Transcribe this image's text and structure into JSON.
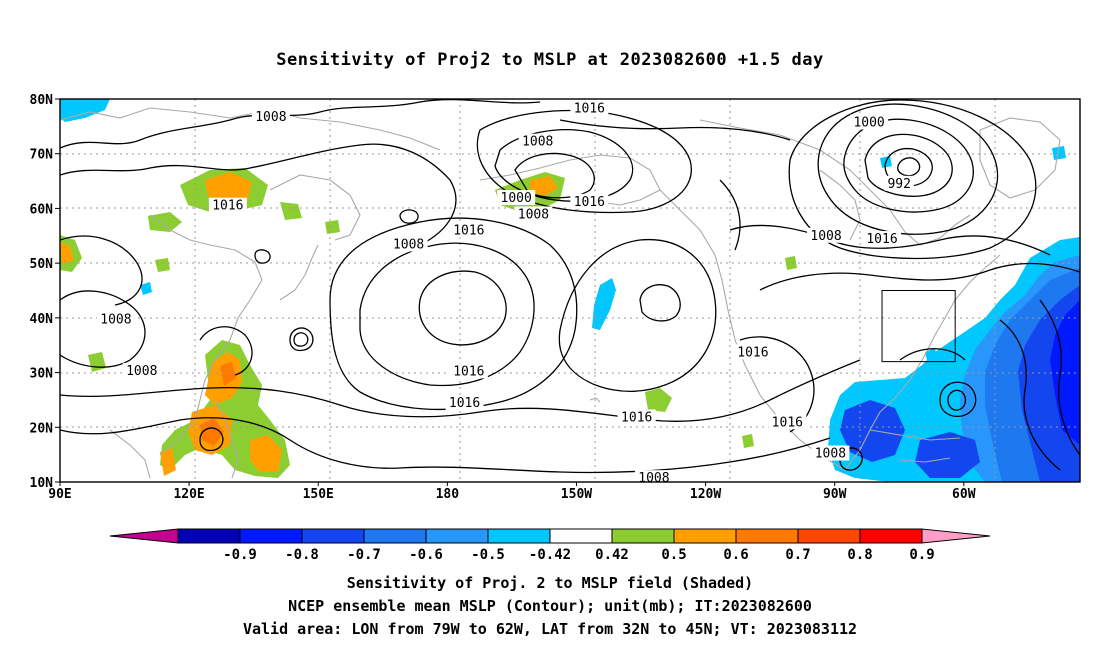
{
  "title": "Sensitivity of Proj2 to MSLP at 2023082600 +1.5 day",
  "map": {
    "lat_labels": [
      "80N",
      "70N",
      "60N",
      "50N",
      "40N",
      "30N",
      "20N",
      "10N"
    ],
    "lon_labels": [
      "90E",
      "120E",
      "150E",
      "180",
      "150W",
      "120W",
      "90W",
      "60W"
    ],
    "contour_labels": [
      {
        "text": "1008",
        "lon": 139,
        "lat": 76.7
      },
      {
        "text": "1016",
        "lon": 213,
        "lat": 78.3
      },
      {
        "text": "1008",
        "lon": 201,
        "lat": 72.2
      },
      {
        "text": "1000",
        "lon": 196,
        "lat": 61.9
      },
      {
        "text": "1008",
        "lon": 200,
        "lat": 58.9
      },
      {
        "text": "1016",
        "lon": 213,
        "lat": 61.2
      },
      {
        "text": "1016",
        "lon": 129,
        "lat": 60.5
      },
      {
        "text": "1016",
        "lon": 185,
        "lat": 56.0
      },
      {
        "text": "1008",
        "lon": 171,
        "lat": 53.4
      },
      {
        "text": "1008",
        "lon": 103,
        "lat": 39.7
      },
      {
        "text": "1008",
        "lon": 109,
        "lat": 30.3
      },
      {
        "text": "1016",
        "lon": 185,
        "lat": 30.2
      },
      {
        "text": "1016",
        "lon": 184,
        "lat": 24.4
      },
      {
        "text": "1016",
        "lon": 224,
        "lat": 21.8
      },
      {
        "text": "1016",
        "lon": 251,
        "lat": 33.7
      },
      {
        "text": "1016",
        "lon": 259,
        "lat": 20.9
      },
      {
        "text": "1008",
        "lon": 269,
        "lat": 15.2
      },
      {
        "text": "1008",
        "lon": 228,
        "lat": 10.7
      },
      {
        "text": "1000",
        "lon": 278,
        "lat": 75.7
      },
      {
        "text": "992",
        "lon": 285,
        "lat": 64.5
      },
      {
        "text": "1008",
        "lon": 268,
        "lat": 55.0
      },
      {
        "text": "1016",
        "lon": 281,
        "lat": 54.4
      }
    ],
    "valid_box": {
      "lon_min": 281,
      "lon_max": 298,
      "lat_min": 32,
      "lat_max": 45
    }
  },
  "colorbar": {
    "colors": [
      "#c3008f",
      "#0000b4",
      "#0019ff",
      "#1446f0",
      "#1e78f0",
      "#2896fa",
      "#00c8ff",
      "#ffffff",
      "#8ccd32",
      "#ffa000",
      "#ff7800",
      "#ff4600",
      "#ff0000",
      "#ff9ec8"
    ],
    "labels": [
      "-0.9",
      "-0.8",
      "-0.7",
      "-0.6",
      "-0.5",
      "-0.42",
      "0.42",
      "0.5",
      "0.6",
      "0.7",
      "0.8",
      "0.9"
    ]
  },
  "captions": {
    "line1": "Sensitivity of Proj. 2 to MSLP field (Shaded)",
    "line2": "NCEP ensemble mean MSLP (Contour); unit(mb); IT:2023082600",
    "line3": "Valid area: LON from 79W to 62W, LAT from 32N to 45N; VT: 2023083112"
  }
}
